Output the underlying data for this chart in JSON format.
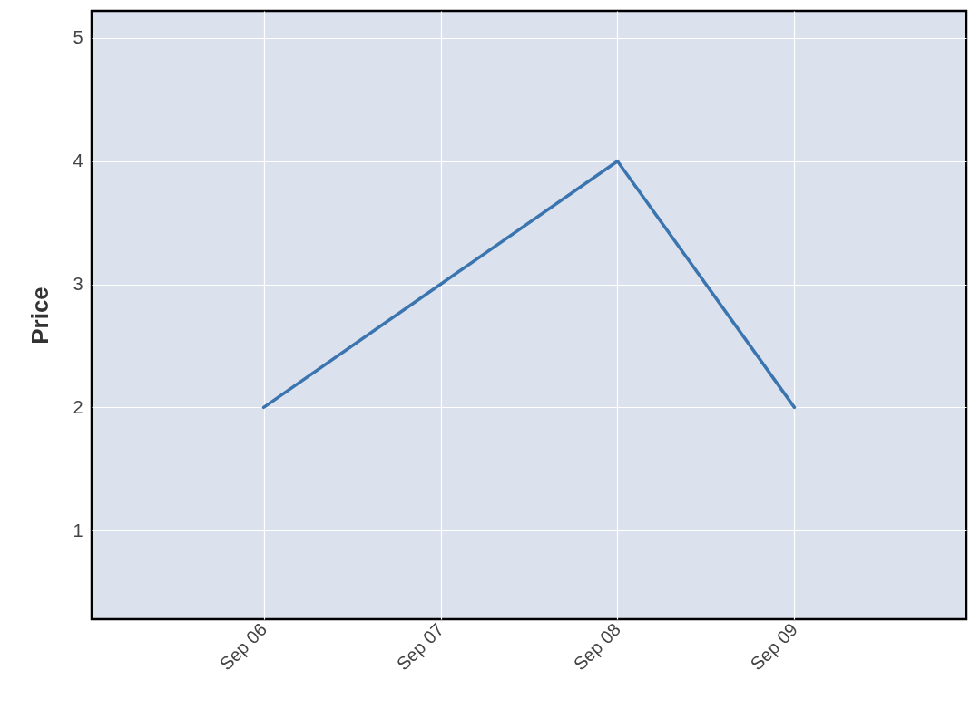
{
  "chart_data": {
    "type": "line",
    "ylabel": "Price",
    "x": [
      "--09-06",
      "--09-07",
      "--09-08",
      "--09-09"
    ],
    "series": [
      {
        "color": "#3b75af",
        "values": [
          2,
          3,
          4,
          2
        ]
      }
    ],
    "xlim": [
      "--09-05T00:40",
      "--09-09T23:20"
    ],
    "xticks": [
      {
        "value": "--09-06",
        "label": "Sep 06"
      },
      {
        "value": "--09-07",
        "label": "Sep 07"
      },
      {
        "value": "--09-08",
        "label": "Sep 08"
      },
      {
        "value": "--09-09",
        "label": "Sep 09"
      }
    ],
    "ylim": [
      0.28,
      5.22
    ],
    "yticks": [
      1,
      2,
      3,
      4,
      5
    ],
    "grid": true,
    "marker": "none",
    "line_style": "solid"
  }
}
